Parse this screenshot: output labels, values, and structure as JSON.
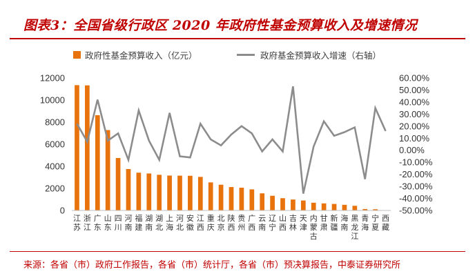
{
  "title": "图表3：全国省级行政区 2020 年政府性基金预算收入及增速情况",
  "source": "来源：各省（市）政府工作报告，各省（市）统计厅，各省（市）预决算报告，中泰证券研究所",
  "colors": {
    "bar": "#e8720c",
    "line": "#8c8c8c",
    "accent": "#c00000"
  },
  "chart_data": {
    "type": "bar",
    "categories": [
      "江苏",
      "浙江",
      "广东",
      "山东",
      "四川",
      "河南",
      "福建",
      "湖南",
      "湖北",
      "上海",
      "河北",
      "安徽",
      "江西",
      "重庆",
      "北京",
      "陕西",
      "贵州",
      "广西",
      "云南",
      "辽宁",
      "山西",
      "吉林",
      "天津",
      "内蒙古",
      "甘肃",
      "新疆",
      "海南",
      "黑龙江",
      "青海",
      "宁夏",
      "西藏"
    ],
    "series": [
      {
        "name": "政府性基金预算收入（亿元）",
        "type": "bar",
        "axis": "left",
        "values": [
          11350,
          11330,
          8630,
          7280,
          4750,
          3750,
          3420,
          3350,
          3230,
          3160,
          3150,
          3140,
          3040,
          2540,
          2330,
          2120,
          2060,
          1910,
          1550,
          1330,
          1110,
          990,
          900,
          700,
          640,
          590,
          510,
          420,
          130,
          110,
          25
        ]
      },
      {
        "name": "政府基金预算收入增速（右轴）",
        "type": "line",
        "axis": "right",
        "values": [
          22.0,
          7.0,
          42.0,
          8.0,
          14.0,
          -8.0,
          33.0,
          8.0,
          -8.0,
          31.0,
          -5.0,
          -6.0,
          22.0,
          9.0,
          4.0,
          13.0,
          20.0,
          14.0,
          -1.0,
          9.0,
          -1.0,
          53.0,
          -36.0,
          3.0,
          24.0,
          12.0,
          15.0,
          19.0,
          -24.0,
          35.0,
          16.0
        ]
      }
    ],
    "ylim": [
      0,
      12000
    ],
    "yticks": [
      0,
      2000,
      4000,
      6000,
      8000,
      10000,
      12000
    ],
    "y2lim": [
      -50,
      60
    ],
    "y2ticks": [
      "-50.00%",
      "-40.00%",
      "-30.00%",
      "-20.00%",
      "-10.00%",
      "0.00%",
      "10.00%",
      "20.00%",
      "30.00%",
      "40.00%",
      "50.00%",
      "60.00%"
    ],
    "legend_position": "top"
  }
}
